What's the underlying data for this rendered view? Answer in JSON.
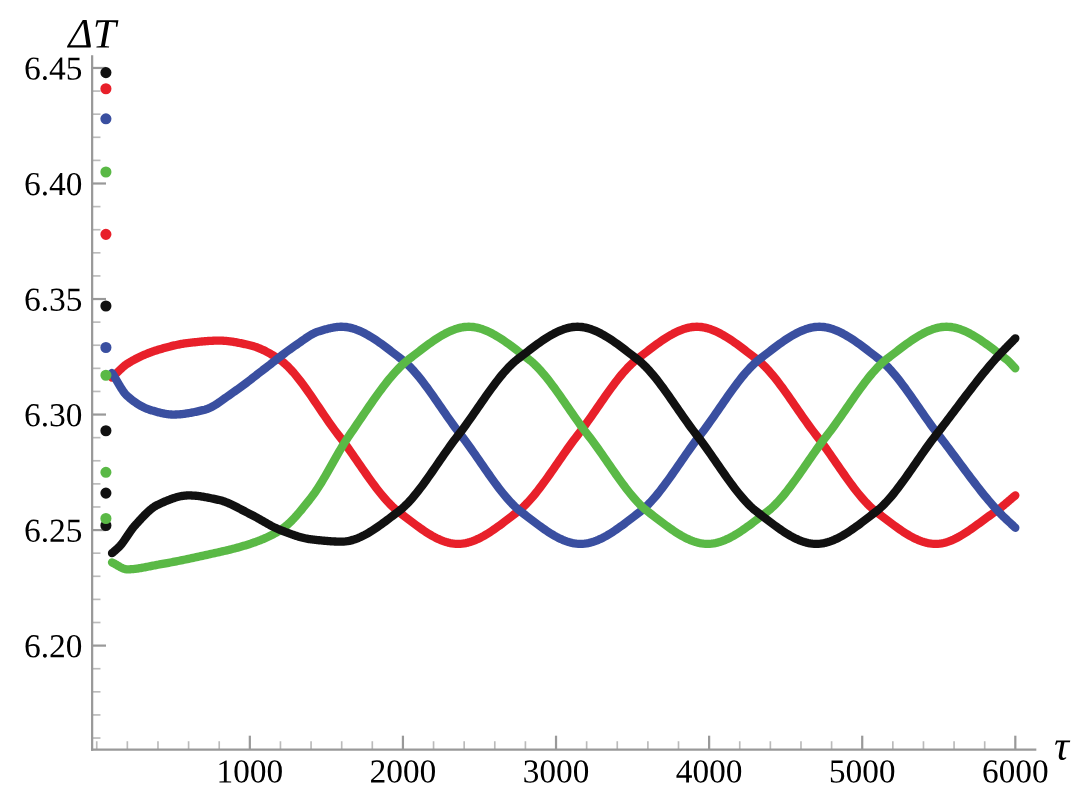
{
  "chart_data": {
    "type": "line",
    "xlabel": "τ",
    "ylabel": "ΔT",
    "xlim": [
      -30,
      6130
    ],
    "ylim": [
      6.155,
      6.455
    ],
    "xticks": [
      1000,
      2000,
      3000,
      4000,
      5000,
      6000
    ],
    "yticks": [
      {
        "value": 6.2,
        "label": "6.20"
      },
      {
        "value": 6.25,
        "label": "6.25"
      },
      {
        "value": 6.3,
        "label": "6.30"
      },
      {
        "value": 6.35,
        "label": "6.35"
      },
      {
        "value": 6.4,
        "label": "6.40"
      },
      {
        "value": 6.45,
        "label": "6.45"
      }
    ],
    "grid": false,
    "legend": false,
    "line_style": "solid",
    "series": [
      {
        "color": "#e8202a",
        "x": [
          100,
          200,
          400,
          600,
          800,
          1000,
          1190,
          1580,
          1970,
          2360,
          2750,
          3140,
          3530,
          3920,
          4310,
          4700,
          5090,
          5480,
          5870,
          6000
        ],
        "values": [
          6.316,
          6.322,
          6.328,
          6.331,
          6.332,
          6.33,
          6.324,
          6.291,
          6.258,
          6.244,
          6.258,
          6.291,
          6.324,
          6.338,
          6.324,
          6.291,
          6.258,
          6.244,
          6.258,
          6.265
        ]
      },
      {
        "color": "#3a4fa0",
        "x": [
          100,
          200,
          350,
          500,
          700,
          900,
          1100,
          1300,
          1450,
          1600,
          1990,
          2380,
          2770,
          3160,
          3550,
          3940,
          4330,
          4720,
          5110,
          5500,
          5890,
          6000
        ],
        "values": [
          6.318,
          6.308,
          6.302,
          6.3,
          6.302,
          6.31,
          6.32,
          6.33,
          6.336,
          6.338,
          6.324,
          6.291,
          6.258,
          6.244,
          6.258,
          6.291,
          6.324,
          6.338,
          6.324,
          6.291,
          6.258,
          6.251
        ]
      },
      {
        "color": "#5ab946",
        "x": [
          100,
          200,
          400,
          700,
          1000,
          1200,
          1400,
          1650,
          2040,
          2430,
          2820,
          3210,
          3600,
          3990,
          4380,
          4770,
          5160,
          5550,
          5940,
          6000
        ],
        "values": [
          6.236,
          6.233,
          6.235,
          6.239,
          6.244,
          6.25,
          6.264,
          6.291,
          6.324,
          6.338,
          6.324,
          6.291,
          6.258,
          6.244,
          6.258,
          6.291,
          6.324,
          6.338,
          6.324,
          6.32
        ]
      },
      {
        "color": "#111111",
        "x": [
          100,
          150,
          250,
          400,
          600,
          800,
          1000,
          1200,
          1400,
          1600,
          1970,
          2360,
          2750,
          3140,
          3530,
          3920,
          4310,
          4700,
          5090,
          5480,
          5870,
          6000
        ],
        "values": [
          6.24,
          6.243,
          6.252,
          6.261,
          6.265,
          6.263,
          6.257,
          6.25,
          6.246,
          6.245,
          6.258,
          6.291,
          6.324,
          6.338,
          6.324,
          6.291,
          6.258,
          6.244,
          6.258,
          6.291,
          6.324,
          6.333
        ]
      },
      {
        "type": "scatter",
        "marker": "circle",
        "color": "#111111",
        "x": [
          60,
          60,
          60,
          60,
          60
        ],
        "values": [
          6.448,
          6.347,
          6.293,
          6.266,
          6.252
        ]
      },
      {
        "type": "scatter",
        "marker": "circle",
        "color": "#e8202a",
        "x": [
          60,
          60
        ],
        "values": [
          6.441,
          6.378
        ]
      },
      {
        "type": "scatter",
        "marker": "circle",
        "color": "#3a4fa0",
        "x": [
          60,
          60
        ],
        "values": [
          6.428,
          6.329
        ]
      },
      {
        "type": "scatter",
        "marker": "circle",
        "color": "#5ab946",
        "x": [
          60,
          60,
          60,
          60
        ],
        "values": [
          6.405,
          6.317,
          6.275,
          6.255
        ]
      }
    ]
  }
}
